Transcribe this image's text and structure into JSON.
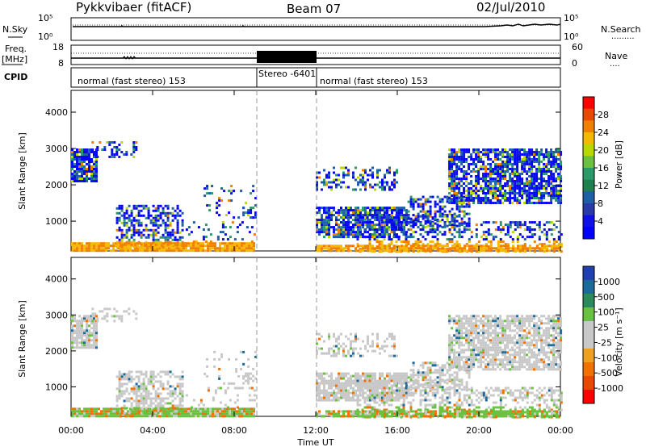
{
  "header": {
    "station": "Pykkvibaer (fitACF)",
    "beam": "Beam 07",
    "date": "02/Jul/2010"
  },
  "side_labels": {
    "nsky": "N.Sky",
    "nsearch": "N.Search",
    "nsearch_dots": ".........",
    "freq_top": "Freq.",
    "freq_unit": "[MHz]",
    "cpid": "CPID",
    "nave": "Nave",
    "nave_dots": "...."
  },
  "noise_panel": {
    "left_ticks": [
      "10^5",
      "10^0"
    ],
    "right_ticks": [
      "10^5",
      "10^0"
    ]
  },
  "freq_panel": {
    "left_ticks": [
      "18",
      "8"
    ],
    "right_ticks": [
      "60",
      "0"
    ]
  },
  "cpid_segments": [
    {
      "label": "normal (fast stereo) 153",
      "start_hour": 0,
      "end_hour": 9
    },
    {
      "label": "Stereo -6401",
      "start_hour": 9,
      "end_hour": 12
    },
    {
      "label": "normal (fast stereo) 153",
      "start_hour": 12,
      "end_hour": 24
    }
  ],
  "time_axis": {
    "label": "Time UT",
    "ticks": [
      "00:00",
      "04:00",
      "08:00",
      "12:00",
      "16:00",
      "20:00",
      "00:00"
    ]
  },
  "chart_data": [
    {
      "type": "heatmap",
      "ylabel": "Slant Range [km]",
      "ylim": [
        180,
        4600
      ],
      "yticks": [
        1000,
        2000,
        3000,
        4000
      ],
      "xlim": [
        0,
        24
      ],
      "colorbar": {
        "label": "Power [dB]",
        "ticks": [
          "28",
          "24",
          "20",
          "16",
          "12",
          "8",
          "4"
        ],
        "colors": [
          "#ff0000",
          "#e84800",
          "#f08000",
          "#f5b800",
          "#b9d800",
          "#6cc040",
          "#2a9a6a",
          "#1e7f4f",
          "#1e5fa8",
          "#2a3aa8",
          "#1010e8",
          "#0000ff"
        ]
      }
    },
    {
      "type": "heatmap",
      "ylabel": "Slant Range [km]",
      "ylim": [
        180,
        4600
      ],
      "yticks": [
        1000,
        2000,
        3000,
        4000
      ],
      "xlim": [
        0,
        24
      ],
      "colorbar": {
        "label": "Velocity [m s^-1]",
        "ticks": [
          "1000",
          "500",
          "100",
          "25",
          "-25",
          "-100",
          "-500",
          "-1000"
        ],
        "colors": [
          "#2040b0",
          "#1c6a9a",
          "#2a8a5a",
          "#6cc040",
          "#c8c8c8",
          "#c8c8c8",
          "#f0a020",
          "#f07000",
          "#e84800",
          "#ff0000"
        ]
      }
    }
  ]
}
